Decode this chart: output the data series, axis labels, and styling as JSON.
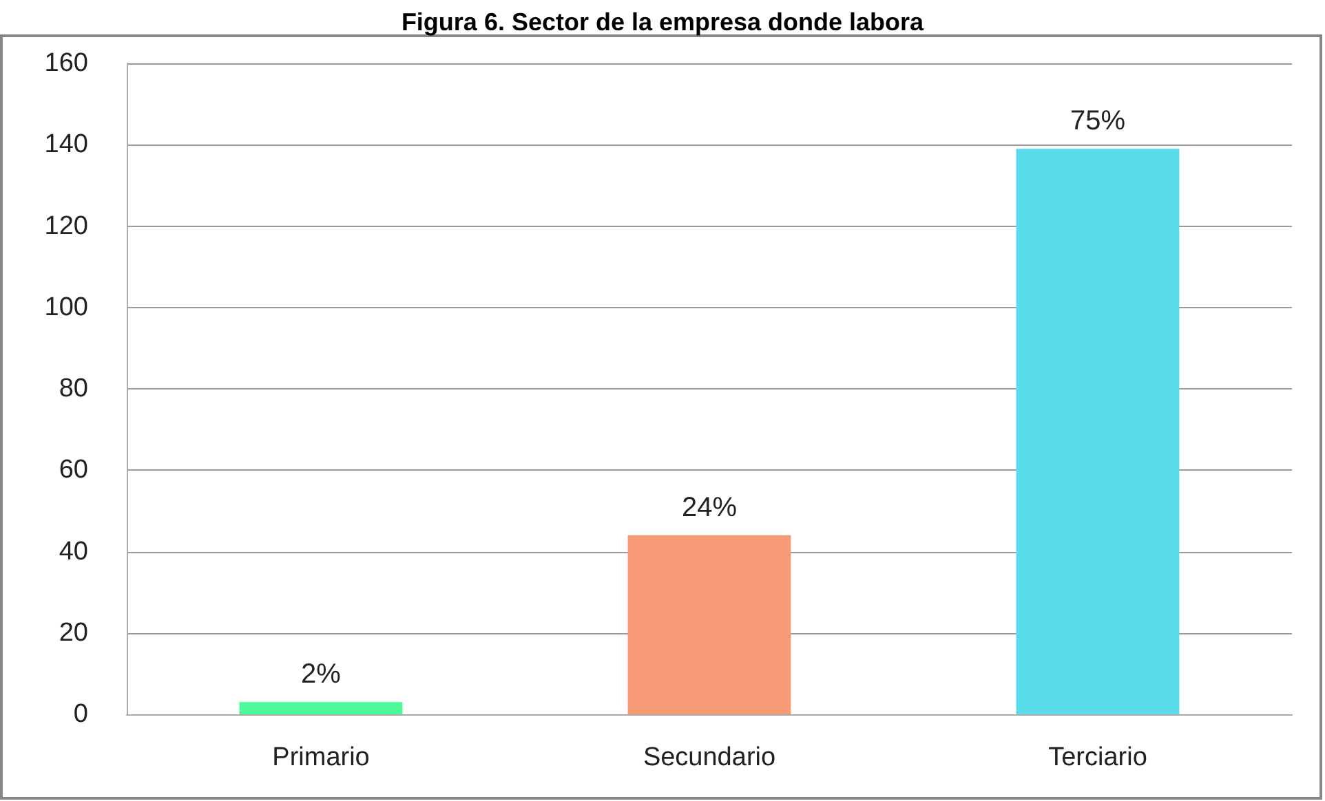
{
  "chart_data": {
    "type": "bar",
    "title": "Figura 6. Sector de la empresa donde labora",
    "categories": [
      "Primario",
      "Secundario",
      "Terciario"
    ],
    "values": [
      3,
      44,
      139
    ],
    "colors": [
      "#4cfa98",
      "#f79a76",
      "#5adcea"
    ],
    "annotations": [
      {
        "text": "2%",
        "x": "Primario",
        "y": 3
      },
      {
        "text": "24%",
        "x": "Secundario",
        "y": 44
      },
      {
        "text": "75%",
        "x": "Terciario",
        "y": 139
      }
    ],
    "ylim": [
      0,
      160
    ],
    "yticks": [
      0,
      20,
      40,
      60,
      80,
      100,
      120,
      140,
      160
    ],
    "grid": "y"
  }
}
